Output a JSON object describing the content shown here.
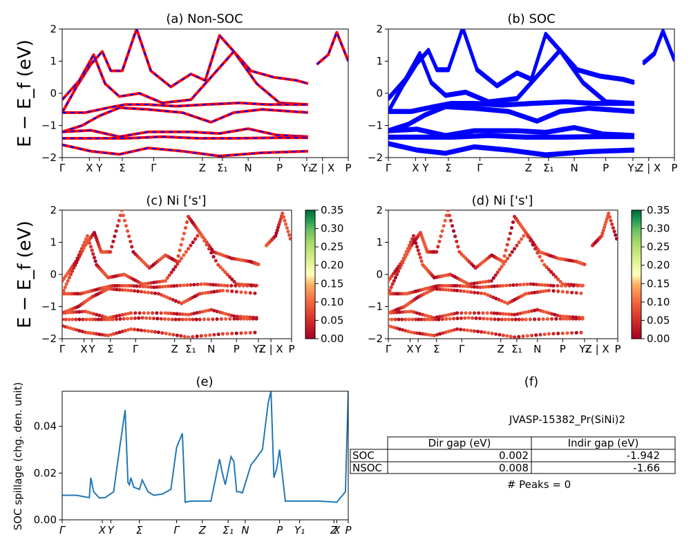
{
  "chart_data": [
    {
      "id": "a",
      "type": "line",
      "title": "(a) Non-SOC",
      "ylabel": "E − E_f (eV)",
      "ylim": [
        -2,
        2
      ],
      "yticks": [
        "2",
        "1",
        "0",
        "−1",
        "−2"
      ],
      "kpath": [
        "Γ",
        "X",
        "Y",
        "Σ",
        "Γ",
        "Z",
        "Σ₁",
        "N",
        "P",
        "Y₁",
        "Z | X",
        "P"
      ],
      "series": [
        {
          "x": [
            0,
            0.05,
            0.1,
            0.14,
            0.17,
            0.21,
            0.26,
            0.31,
            0.38,
            0.45,
            0.5,
            0.55,
            0.6,
            0.66,
            0.74,
            0.82,
            0.86
          ],
          "values": [
            -0.6,
            0.2,
            0.9,
            1.3,
            0.7,
            0.7,
            2.0,
            0.7,
            0.2,
            0.6,
            0.4,
            1.8,
            1.3,
            0.7,
            0.5,
            0.4,
            0.3
          ]
        },
        {
          "x": [
            0,
            0.06,
            0.11,
            0.15,
            0.2,
            0.27,
            0.35,
            0.45,
            0.52,
            0.6,
            0.68,
            0.76,
            0.86
          ],
          "values": [
            -0.2,
            0.4,
            1.2,
            0.3,
            -0.1,
            0.0,
            -0.3,
            -0.2,
            0.5,
            1.3,
            0.3,
            -0.3,
            -0.35
          ]
        },
        {
          "x": [
            0,
            0.08,
            0.16,
            0.22,
            0.3,
            0.4,
            0.5,
            0.62,
            0.72,
            0.86
          ],
          "values": [
            -0.6,
            -0.6,
            -0.45,
            -0.35,
            -0.35,
            -0.4,
            -0.35,
            -0.3,
            -0.35,
            -0.35
          ]
        },
        {
          "x": [
            0,
            0.07,
            0.13,
            0.2,
            0.3,
            0.42,
            0.52,
            0.6,
            0.7,
            0.86
          ],
          "values": [
            -1.2,
            -1.0,
            -0.7,
            -0.45,
            -0.5,
            -0.6,
            -0.9,
            -0.6,
            -0.5,
            -0.6
          ]
        },
        {
          "x": [
            0,
            0.1,
            0.2,
            0.3,
            0.45,
            0.55,
            0.65,
            0.75,
            0.86
          ],
          "values": [
            -1.2,
            -1.15,
            -1.35,
            -1.2,
            -1.2,
            -1.25,
            -1.1,
            -1.3,
            -1.35
          ]
        },
        {
          "x": [
            0,
            0.12,
            0.22,
            0.35,
            0.48,
            0.6,
            0.75,
            0.86
          ],
          "values": [
            -1.4,
            -1.4,
            -1.4,
            -1.35,
            -1.4,
            -1.4,
            -1.38,
            -1.38
          ]
        },
        {
          "x": [
            0,
            0.1,
            0.2,
            0.3,
            0.42,
            0.55,
            0.7,
            0.86
          ],
          "values": [
            -1.6,
            -1.8,
            -1.9,
            -1.7,
            -1.8,
            -1.95,
            -1.85,
            -1.8
          ]
        },
        {
          "x": [
            0.89,
            0.93,
            0.96,
            1.0
          ],
          "values": [
            0.9,
            1.2,
            1.9,
            1.0
          ]
        }
      ],
      "colors": {
        "primary": "#ff0000",
        "dash": "#0000ff"
      }
    },
    {
      "id": "b",
      "type": "line",
      "title": "(b) SOC",
      "ylim": [
        -2,
        2
      ],
      "yticks": [
        "2",
        "1",
        "0",
        "−1",
        "−2"
      ],
      "kpath": [
        "Γ",
        "X",
        "Y",
        "Σ",
        "Γ",
        "Z",
        "Σ₁",
        "N",
        "P",
        "Y₁",
        "Z | X",
        "P"
      ],
      "colors": {
        "primary": "#0000ff"
      }
    },
    {
      "id": "c",
      "type": "scatter",
      "title": "(c)  Ni ['s']",
      "ylabel": "E − E_f (eV)",
      "ylim": [
        -2,
        2
      ],
      "yticks": [
        "2",
        "1",
        "0",
        "−1",
        "−2"
      ],
      "kpath": [
        "Γ",
        "X",
        "Y",
        "Σ",
        "Γ",
        "Z",
        "Σ₁",
        "N",
        "P",
        "Y₁",
        "Z | X",
        "P"
      ],
      "colorbar": {
        "range": [
          0,
          0.35
        ],
        "ticks": [
          "0.35",
          "0.30",
          "0.25",
          "0.20",
          "0.15",
          "0.10",
          "0.05",
          "0.00"
        ]
      }
    },
    {
      "id": "d",
      "type": "scatter",
      "title": "(d) Ni ['s']",
      "ylim": [
        -2,
        2
      ],
      "yticks": [
        "2",
        "1",
        "0",
        "−1",
        "−2"
      ],
      "kpath": [
        "Γ",
        "X",
        "Y",
        "Σ",
        "Γ",
        "Z",
        "Σ₁",
        "N",
        "P",
        "Y₁",
        "Z | X",
        "P"
      ],
      "colorbar": {
        "range": [
          0,
          0.35
        ],
        "ticks": [
          "0.35",
          "0.30",
          "0.25",
          "0.20",
          "0.15",
          "0.10",
          "0.05",
          "0.00"
        ]
      }
    },
    {
      "id": "e",
      "type": "line",
      "title": "(e)",
      "ylabel": "SOC spillage (chg. den. unit)",
      "ylim": [
        0,
        0.055
      ],
      "yticks": [
        "0.04",
        "0.02",
        "0.00"
      ],
      "kpath": [
        "Γ",
        "X",
        "Y",
        "Σ",
        "Γ",
        "Z",
        "Σ₁",
        "N",
        "P",
        "Y₁",
        "Z",
        "X",
        "P"
      ],
      "x": [
        0,
        0.05,
        0.08,
        0.095,
        0.1,
        0.11,
        0.13,
        0.15,
        0.18,
        0.2,
        0.22,
        0.23,
        0.235,
        0.24,
        0.25,
        0.27,
        0.28,
        0.3,
        0.32,
        0.35,
        0.38,
        0.4,
        0.42,
        0.43,
        0.44,
        0.45,
        0.46,
        0.48,
        0.5,
        0.52,
        0.55,
        0.56,
        0.57,
        0.59,
        0.6,
        0.61,
        0.62,
        0.63,
        0.66,
        0.67,
        0.7,
        0.72,
        0.73,
        0.74,
        0.75,
        0.76,
        0.78,
        0.8,
        0.9,
        0.96,
        0.99,
        1.0
      ],
      "values": [
        0.0105,
        0.0105,
        0.0098,
        0.0095,
        0.018,
        0.012,
        0.0093,
        0.0095,
        0.012,
        0.03,
        0.047,
        0.016,
        0.015,
        0.018,
        0.014,
        0.013,
        0.017,
        0.012,
        0.0105,
        0.011,
        0.013,
        0.031,
        0.037,
        0.0075,
        0.0078,
        0.008,
        0.008,
        0.008,
        0.008,
        0.008,
        0.026,
        0.02,
        0.015,
        0.027,
        0.025,
        0.012,
        0.012,
        0.0115,
        0.0235,
        0.025,
        0.03,
        0.05,
        0.055,
        0.018,
        0.022,
        0.03,
        0.008,
        0.008,
        0.008,
        0.0075,
        0.012,
        0.055
      ],
      "color": "#1f77b4"
    }
  ],
  "panel_f": {
    "title": "(f)",
    "name": "JVASP-15382_Pr(SiNi)2",
    "columns": [
      "Dir gap (eV)",
      "Indir gap (eV)"
    ],
    "rows": [
      {
        "label": "SOC",
        "dir": "0.002",
        "indir": "-1.942"
      },
      {
        "label": "NSOC",
        "dir": "0.008",
        "indir": "-1.66"
      }
    ],
    "peaks": "# Peaks = 0"
  }
}
